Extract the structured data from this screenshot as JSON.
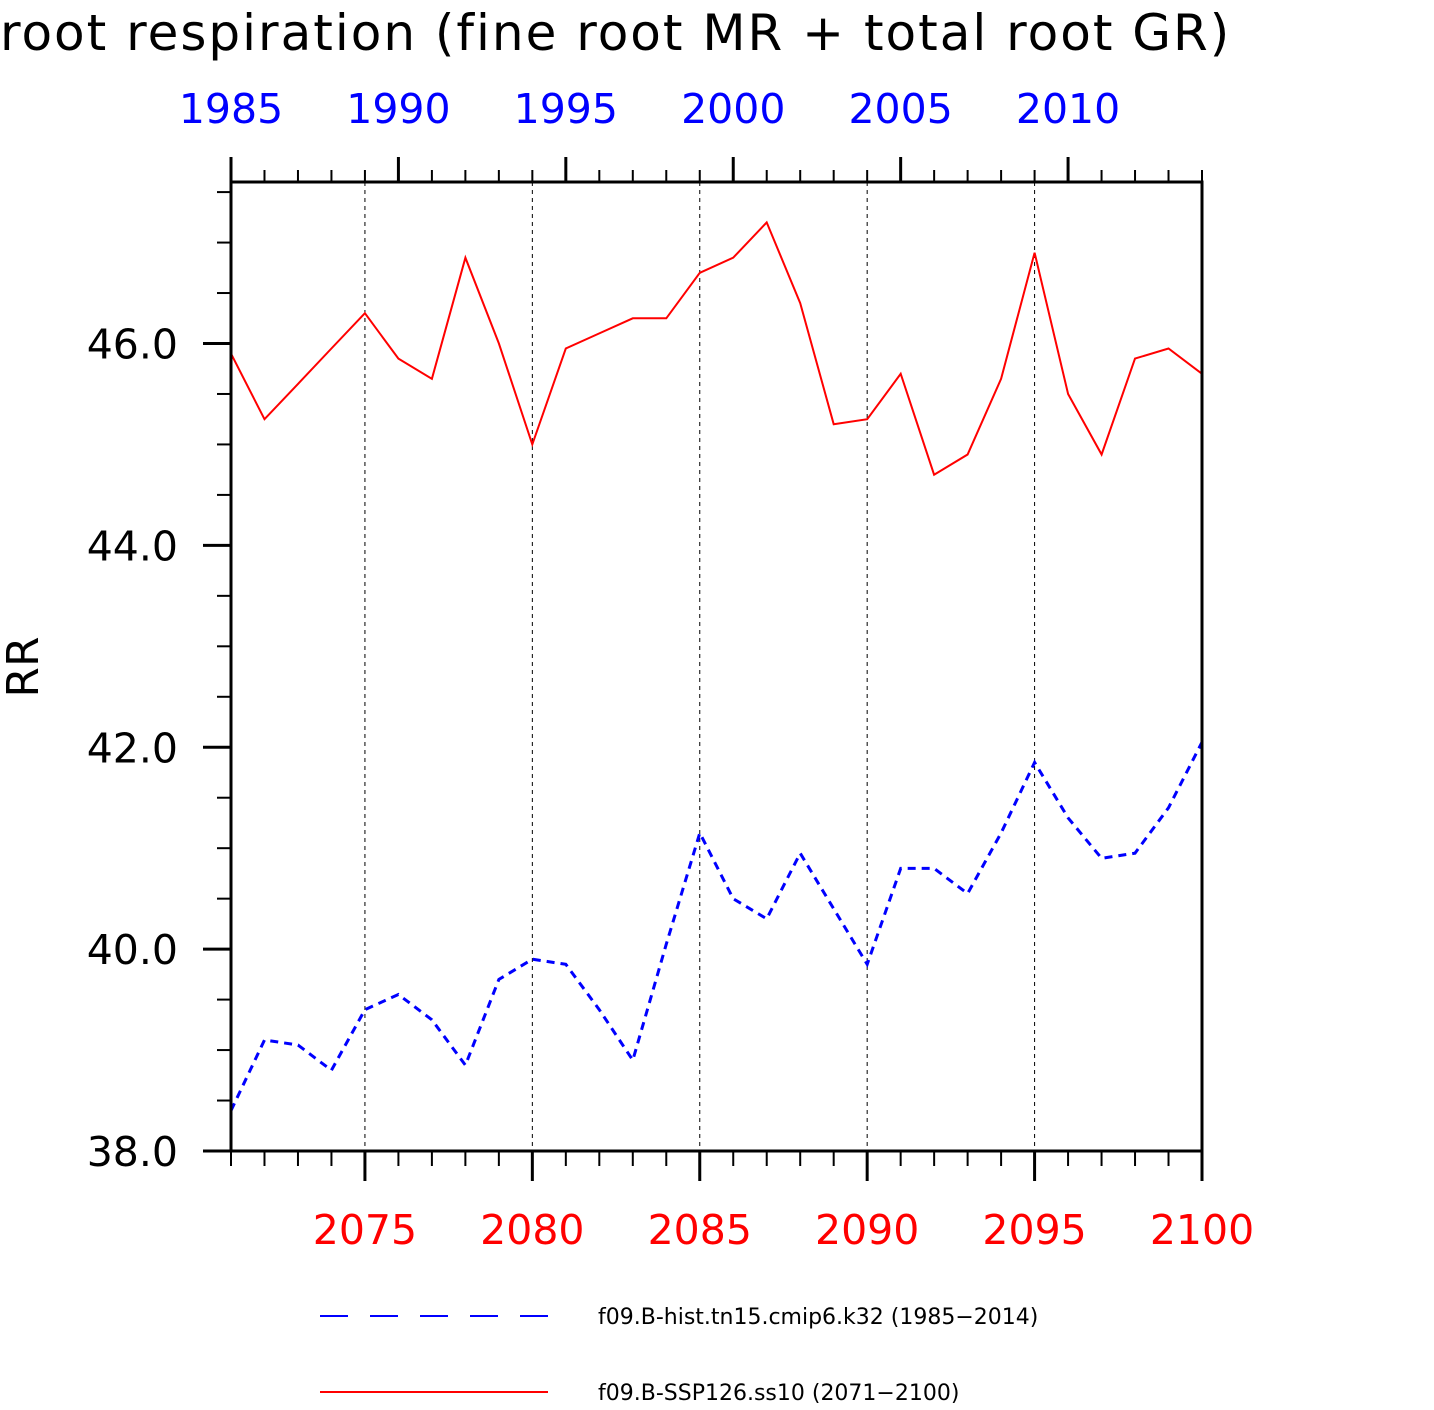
{
  "chart_data": {
    "type": "line",
    "title": "root respiration (fine root MR + total root GR)",
    "ylabel": "RR",
    "ylim": [
      38.0,
      47.6
    ],
    "y_ticks": [
      38.0,
      40.0,
      42.0,
      44.0,
      46.0
    ],
    "y_tick_labels": [
      "38.0",
      "40.0",
      "42.0",
      "44.0",
      "46.0"
    ],
    "x_bottom": {
      "range": [
        2071,
        2100
      ],
      "ticks": [
        2075,
        2080,
        2085,
        2090,
        2095,
        2100
      ],
      "tick_labels": [
        "2075",
        "2080",
        "2085",
        "2090",
        "2095",
        "2100"
      ],
      "color": "#ff0000"
    },
    "x_top": {
      "range": [
        1985,
        2014
      ],
      "ticks": [
        1985,
        1990,
        1995,
        2000,
        2005,
        2010
      ],
      "tick_labels": [
        "1985",
        "1990",
        "1995",
        "2000",
        "2005",
        "2010"
      ],
      "color": "#0000ff"
    },
    "vertical_grid": "dashed at major ticks",
    "legend_position": "bottom",
    "series": [
      {
        "name": "f09.B-hist.tn15.cmip6.k32 (1985−2014)",
        "axis": "top",
        "color": "#0000ff",
        "style": "dashed",
        "x": [
          1985,
          1986,
          1987,
          1988,
          1989,
          1990,
          1991,
          1992,
          1993,
          1994,
          1995,
          1996,
          1997,
          1998,
          1999,
          2000,
          2001,
          2002,
          2003,
          2004,
          2005,
          2006,
          2007,
          2008,
          2009,
          2010,
          2011,
          2012,
          2013,
          2014
        ],
        "values": [
          38.4,
          39.1,
          39.05,
          38.8,
          39.4,
          39.55,
          39.3,
          38.85,
          39.7,
          39.9,
          39.85,
          39.4,
          38.9,
          40.05,
          41.15,
          40.5,
          40.3,
          40.95,
          40.4,
          39.85,
          40.8,
          40.8,
          40.55,
          41.15,
          41.85,
          41.3,
          40.9,
          40.95,
          41.4,
          42.05
        ]
      },
      {
        "name": "f09.B-SSP126.ss10 (2071−2100)",
        "axis": "bottom",
        "color": "#ff0000",
        "style": "solid",
        "x": [
          2071,
          2072,
          2073,
          2074,
          2075,
          2076,
          2077,
          2078,
          2079,
          2080,
          2081,
          2082,
          2083,
          2084,
          2085,
          2086,
          2087,
          2088,
          2089,
          2090,
          2091,
          2092,
          2093,
          2094,
          2095,
          2096,
          2097,
          2098,
          2099,
          2100
        ],
        "values": [
          45.9,
          45.25,
          45.6,
          45.95,
          46.3,
          45.85,
          45.65,
          46.85,
          46.0,
          45.0,
          45.95,
          46.1,
          46.25,
          46.25,
          46.7,
          46.85,
          47.2,
          46.4,
          45.2,
          45.25,
          45.7,
          44.7,
          44.9,
          45.65,
          46.9,
          45.5,
          44.9,
          45.85,
          45.95,
          45.7
        ]
      }
    ]
  }
}
